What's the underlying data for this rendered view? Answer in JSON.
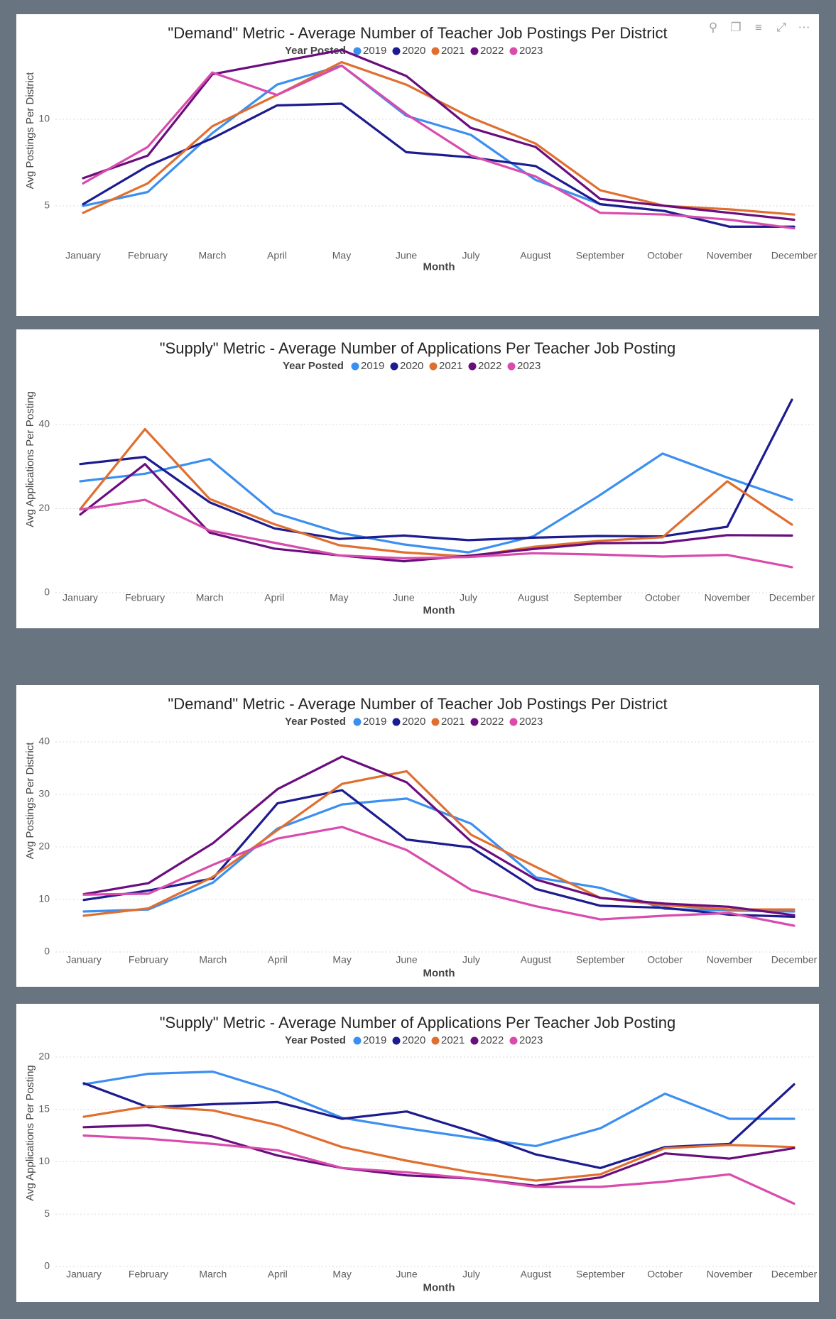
{
  "header_icons": [
    "pin-icon",
    "copy-icon",
    "filter-icon",
    "focus-mode-icon",
    "more-options-icon"
  ],
  "legend_title": "Year Posted",
  "x_axis_title": "Month",
  "months": [
    "January",
    "February",
    "March",
    "April",
    "May",
    "June",
    "July",
    "August",
    "September",
    "October",
    "November",
    "December"
  ],
  "colors": {
    "2019": "#3b8ff0",
    "2020": "#1c1b8f",
    "2021": "#e06f2f",
    "2022": "#6a0d7e",
    "2023": "#d94bac"
  },
  "chart_data": [
    {
      "type": "line",
      "title": "\"Demand\" Metric - Average Number of Teacher Job Postings Per District",
      "xlabel": "Month",
      "ylabel": "Avg Postings Per District",
      "yticks": [
        5,
        10
      ],
      "ylim": [
        2,
        15
      ],
      "grid": true,
      "legend": "top",
      "categories": [
        "January",
        "February",
        "March",
        "April",
        "May",
        "June",
        "July",
        "August",
        "September",
        "October",
        "November",
        "December"
      ],
      "series": [
        {
          "name": "2019",
          "values": [
            5.0,
            5.8,
            9.2,
            12.0,
            13.1,
            10.2,
            9.1,
            6.5,
            5.1,
            4.7,
            3.8,
            3.8
          ]
        },
        {
          "name": "2020",
          "values": [
            5.1,
            7.3,
            8.9,
            10.8,
            10.9,
            8.1,
            7.8,
            7.3,
            5.1,
            4.7,
            3.8,
            3.8
          ]
        },
        {
          "name": "2021",
          "values": [
            4.6,
            6.3,
            9.6,
            11.4,
            13.3,
            12.0,
            10.1,
            8.6,
            5.9,
            5.0,
            4.8,
            4.5
          ]
        },
        {
          "name": "2022",
          "values": [
            6.6,
            7.9,
            12.6,
            13.3,
            14.0,
            12.5,
            9.5,
            8.4,
            5.4,
            5.0,
            4.6,
            4.2
          ]
        },
        {
          "name": "2023",
          "values": [
            6.3,
            8.4,
            12.7,
            11.4,
            13.1,
            10.3,
            7.9,
            6.7,
            4.6,
            4.5,
            4.2,
            3.7
          ]
        }
      ]
    },
    {
      "type": "line",
      "title": "\"Supply\" Metric - Average Number of Applications Per Teacher Job Posting",
      "xlabel": "Month",
      "ylabel": "Avg Applications Per Posting",
      "yticks": [
        0,
        20,
        40
      ],
      "ylim": [
        0,
        47
      ],
      "grid": true,
      "legend": "top",
      "categories": [
        "January",
        "February",
        "March",
        "April",
        "May",
        "June",
        "July",
        "August",
        "September",
        "October",
        "November",
        "December"
      ],
      "series": [
        {
          "name": "2019",
          "values": [
            26.5,
            28.3,
            31.8,
            19.0,
            14.3,
            11.5,
            9.6,
            13.4,
            22.9,
            33.1,
            27.4,
            22.1
          ]
        },
        {
          "name": "2020",
          "values": [
            30.6,
            32.3,
            21.5,
            15.3,
            12.8,
            13.6,
            12.5,
            13.1,
            13.5,
            13.4,
            15.7,
            45.9
          ]
        },
        {
          "name": "2021",
          "values": [
            19.9,
            38.9,
            22.3,
            16.3,
            11.3,
            9.6,
            8.6,
            10.9,
            12.3,
            13.2,
            26.5,
            16.2
          ]
        },
        {
          "name": "2022",
          "values": [
            18.6,
            30.6,
            14.3,
            10.5,
            8.9,
            7.5,
            8.8,
            10.4,
            11.8,
            11.9,
            13.7,
            13.6
          ]
        },
        {
          "name": "2023",
          "values": [
            19.8,
            22.1,
            14.8,
            11.9,
            8.9,
            8.2,
            8.5,
            9.4,
            9.1,
            8.6,
            9.0,
            6.1
          ]
        }
      ]
    },
    {
      "type": "line",
      "title": "\"Demand\" Metric - Average Number of Teacher Job Postings Per District",
      "xlabel": "Month",
      "ylabel": "Avg Postings Per District",
      "yticks": [
        0,
        10,
        20,
        30,
        40
      ],
      "ylim": [
        0,
        40
      ],
      "grid": true,
      "legend": "top",
      "categories": [
        "January",
        "February",
        "March",
        "April",
        "May",
        "June",
        "July",
        "August",
        "September",
        "October",
        "November",
        "December"
      ],
      "series": [
        {
          "name": "2019",
          "values": [
            7.7,
            8.1,
            13.2,
            23.5,
            28.1,
            29.2,
            24.4,
            14.2,
            12.2,
            8.2,
            7.9,
            7.7
          ]
        },
        {
          "name": "2020",
          "values": [
            9.9,
            11.7,
            14.0,
            28.3,
            30.8,
            21.4,
            19.9,
            12.0,
            8.8,
            8.4,
            7.1,
            6.7
          ]
        },
        {
          "name": "2021",
          "values": [
            6.9,
            8.3,
            14.3,
            23.2,
            32.0,
            34.4,
            22.3,
            16.2,
            10.3,
            8.9,
            8.1,
            8.1
          ]
        },
        {
          "name": "2022",
          "values": [
            11.0,
            13.1,
            20.7,
            31.0,
            37.2,
            32.3,
            21.0,
            13.8,
            10.3,
            9.2,
            8.6,
            7.0
          ]
        },
        {
          "name": "2023",
          "values": [
            10.9,
            11.1,
            16.6,
            21.6,
            23.8,
            19.4,
            11.8,
            8.7,
            6.2,
            6.9,
            7.4,
            5.0
          ]
        }
      ]
    },
    {
      "type": "line",
      "title": "\"Supply\" Metric - Average Number of Applications Per Teacher Job Posting",
      "xlabel": "Month",
      "ylabel": "Avg Applications Per Posting",
      "yticks": [
        0,
        5,
        10,
        15,
        20
      ],
      "ylim": [
        0,
        20
      ],
      "grid": true,
      "legend": "top",
      "categories": [
        "January",
        "February",
        "March",
        "April",
        "May",
        "June",
        "July",
        "August",
        "September",
        "October",
        "November",
        "December"
      ],
      "series": [
        {
          "name": "2019",
          "values": [
            17.4,
            18.4,
            18.6,
            16.7,
            14.2,
            13.2,
            12.3,
            11.5,
            13.2,
            16.5,
            14.1,
            14.1
          ]
        },
        {
          "name": "2020",
          "values": [
            17.5,
            15.2,
            15.5,
            15.7,
            14.1,
            14.8,
            12.9,
            10.7,
            9.4,
            11.4,
            11.7,
            17.4
          ]
        },
        {
          "name": "2021",
          "values": [
            14.3,
            15.3,
            14.9,
            13.5,
            11.4,
            10.1,
            9.0,
            8.2,
            8.8,
            11.3,
            11.6,
            11.4
          ]
        },
        {
          "name": "2022",
          "values": [
            13.3,
            13.5,
            12.4,
            10.6,
            9.4,
            8.7,
            8.4,
            7.7,
            8.5,
            10.8,
            10.3,
            11.3
          ]
        },
        {
          "name": "2023",
          "values": [
            12.5,
            12.2,
            11.7,
            11.1,
            9.4,
            9.0,
            8.4,
            7.6,
            7.6,
            8.1,
            8.8,
            6.0
          ]
        }
      ]
    }
  ]
}
